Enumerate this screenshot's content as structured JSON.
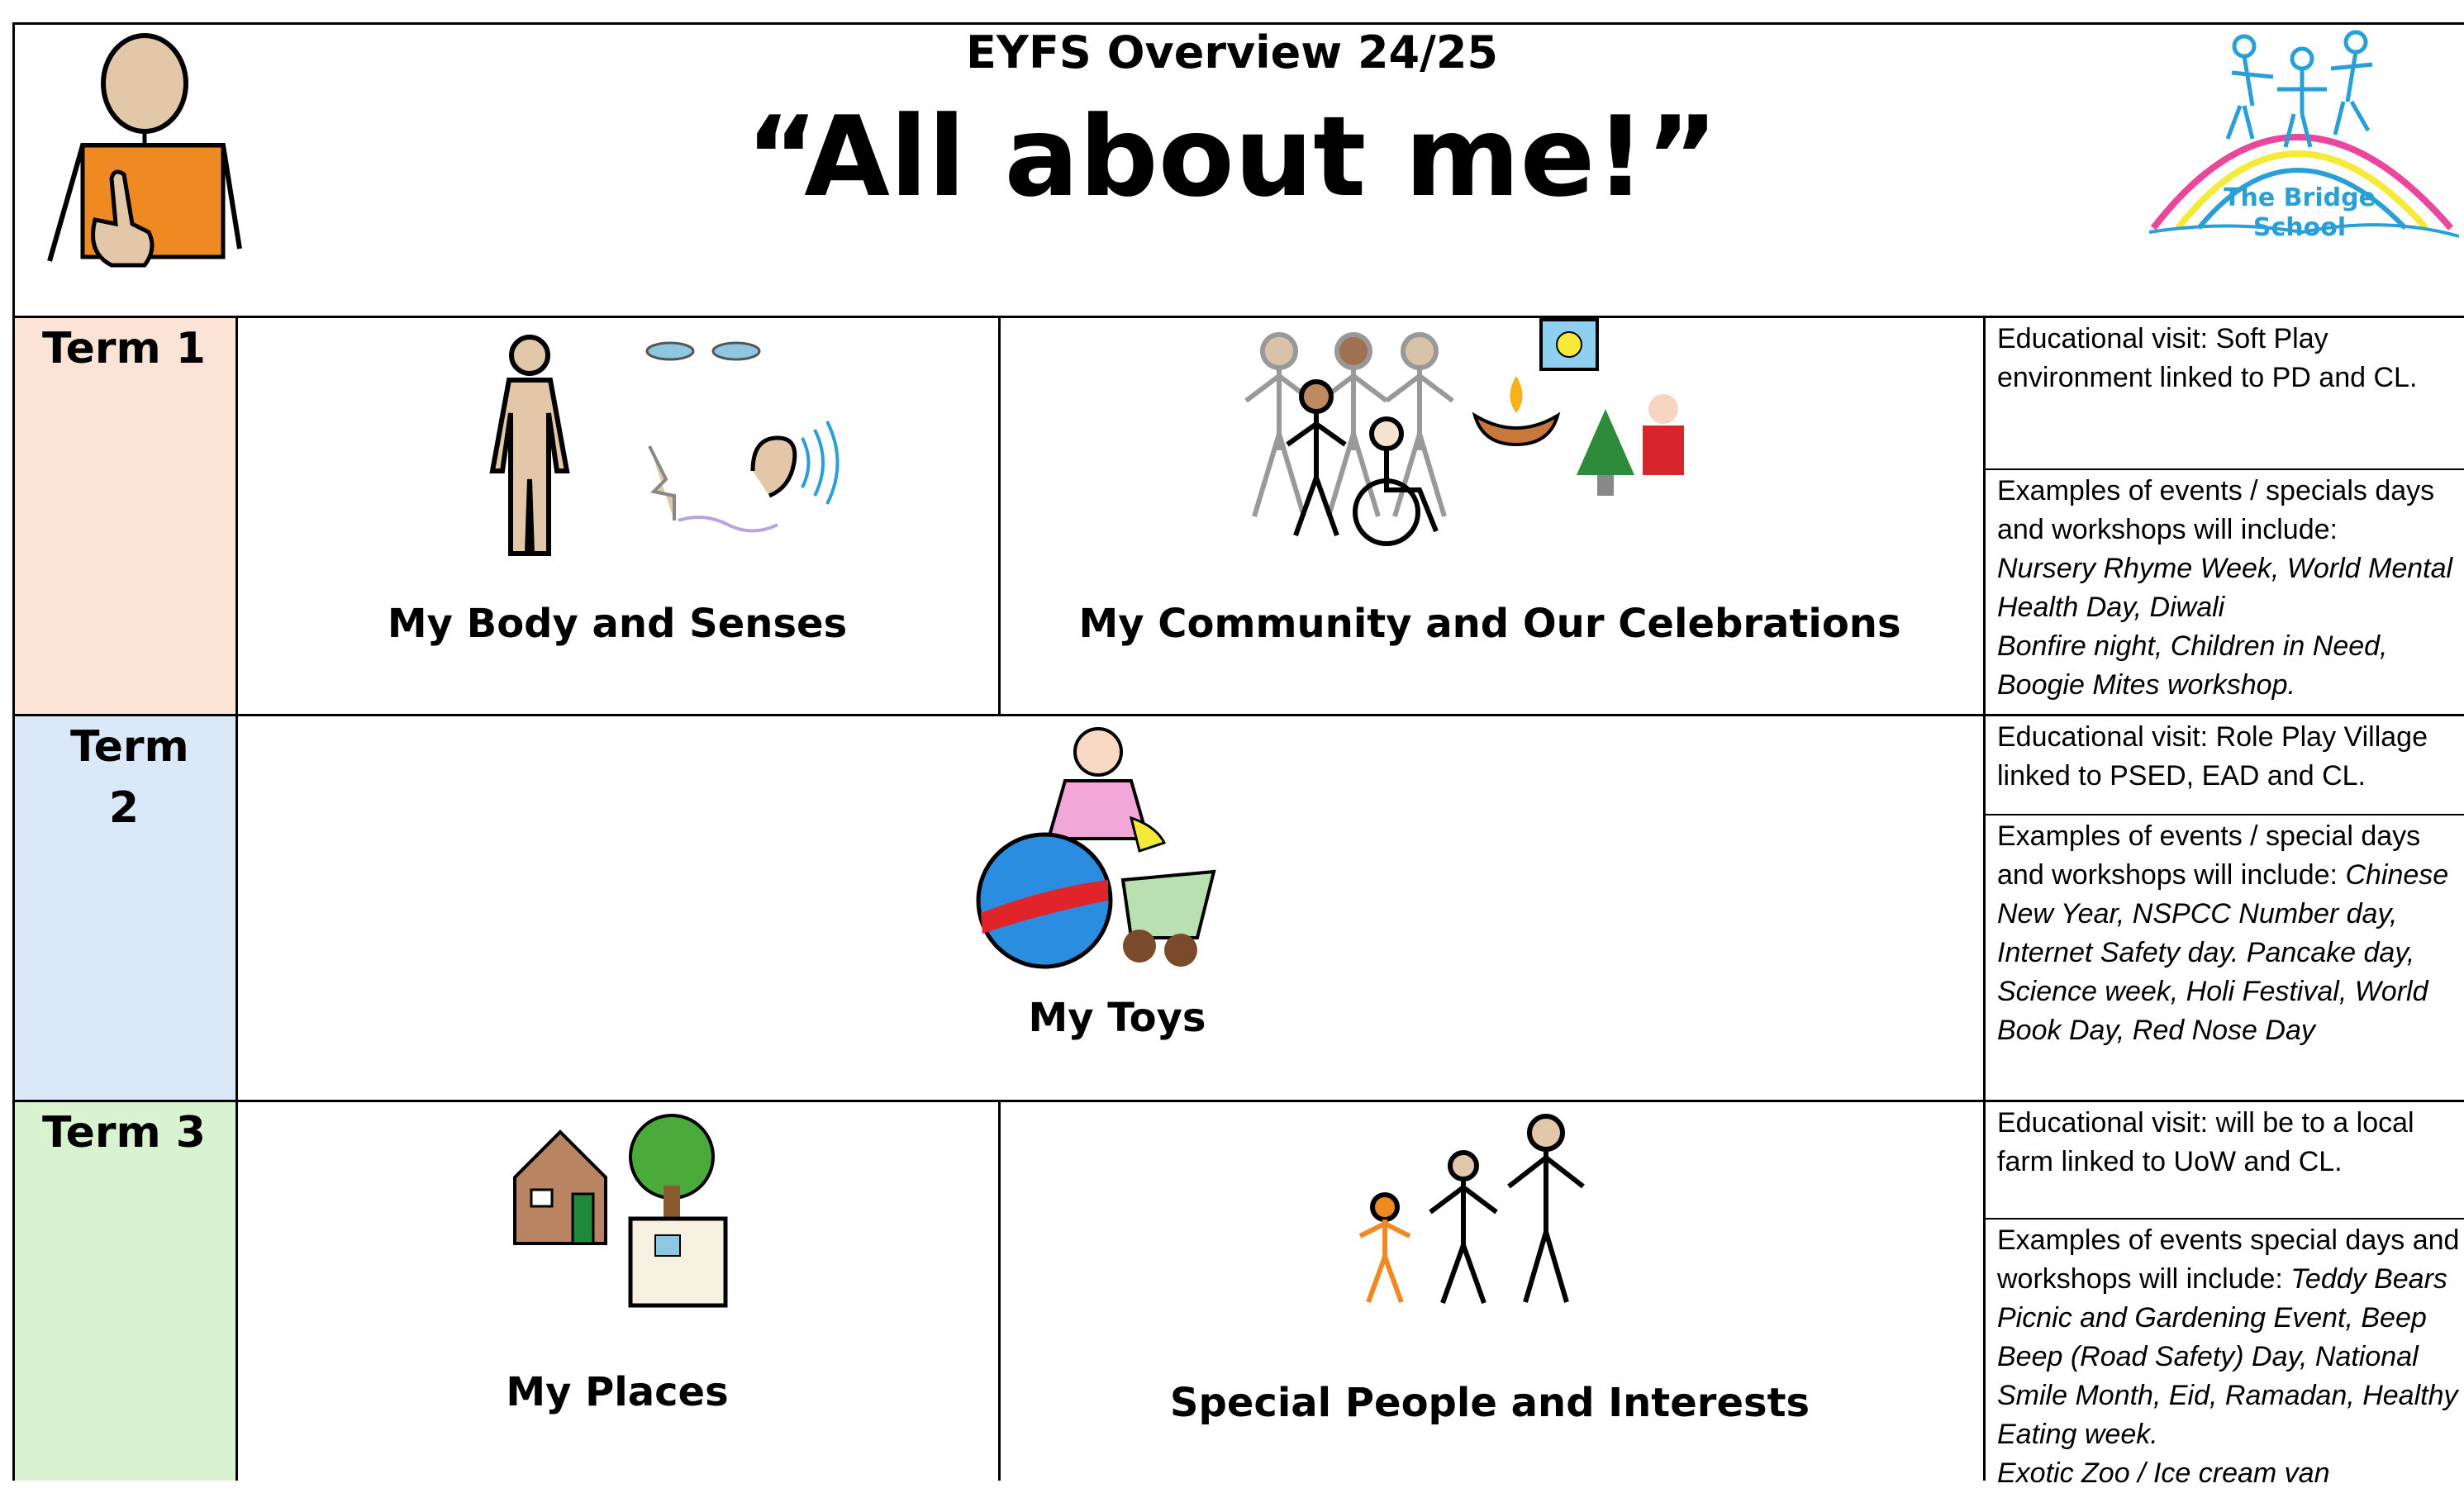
{
  "header": {
    "subtitle": "EYFS Overview 24/25",
    "title": "“All about me!”",
    "logo_text": [
      "The Bridge",
      "School"
    ]
  },
  "terms": [
    {
      "label": "Term 1",
      "topics": [
        "My Body and Senses",
        "My Community and Our Celebrations"
      ],
      "visit": "Educational visit: Soft Play environment linked to PD and CL.",
      "events_intro": "Examples of events / specials days and workshops will include:",
      "events": [
        "Nursery Rhyme Week, World Mental Health Day, Diwali",
        "Bonfire night, Children in Need, Boogie Mites workshop."
      ]
    },
    {
      "label": "Term 2",
      "topics": [
        "My Toys"
      ],
      "visit": "Educational visit: Role Play Village linked to PSED, EAD and CL.",
      "events_intro": "Examples of events / special days and workshops will include:",
      "events": [
        "Chinese New Year, NSPCC Number day, Internet Safety day. Pancake day, Science week, Holi Festival, World Book Day, Red Nose Day"
      ]
    },
    {
      "label": "Term 3",
      "topics": [
        "My Places",
        "Special People and Interests"
      ],
      "visit": "Educational visit: will be to a local farm linked to UoW and CL.",
      "events_intro": "Examples of events special days and workshops will include:",
      "events": [
        "Teddy Bears Picnic and Gardening Event, Beep Beep (Road Safety) Day, National Smile Month, Eid, Ramadan, Healthy Eating week.",
        "Exotic Zoo / Ice cream van"
      ]
    }
  ]
}
